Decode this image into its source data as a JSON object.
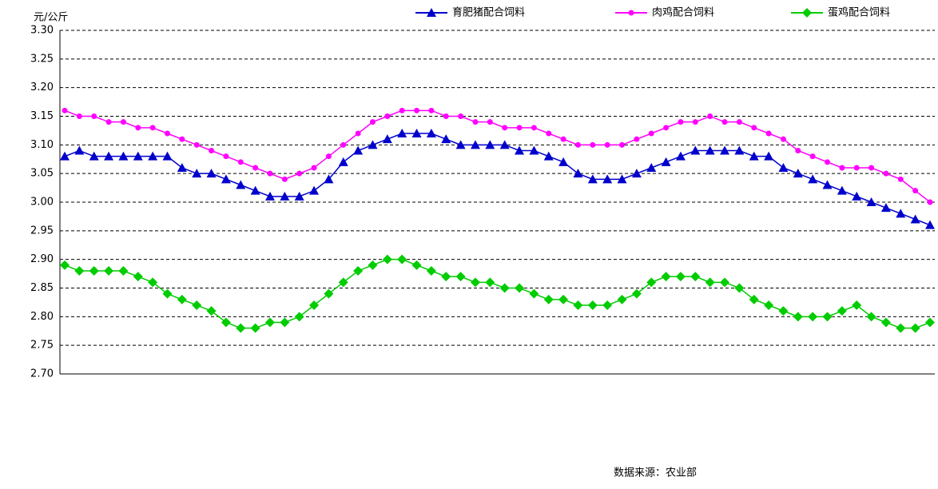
{
  "chart_data": {
    "type": "line",
    "title": null,
    "y_label": "元/公斤",
    "source": "数据来源：农业部",
    "categories": [
      null,
      null,
      null,
      null,
      null,
      null,
      null,
      null,
      null,
      null,
      null,
      null,
      null,
      null,
      null,
      null,
      null,
      null,
      null,
      null,
      null,
      null,
      null,
      null,
      null,
      null,
      null,
      null,
      null,
      null,
      null,
      null,
      null,
      null,
      null,
      null,
      null,
      null,
      null,
      null,
      null,
      null,
      null,
      null,
      null,
      null,
      null,
      null,
      null,
      null,
      null,
      null,
      null,
      null,
      null,
      null,
      null,
      null,
      null,
      null
    ],
    "ylim": [
      2.7,
      3.3
    ],
    "yticks": [
      {
        "value": 2.7,
        "label": "2.70"
      },
      2.75,
      {
        "value": 2.8,
        "label": "2.80"
      },
      2.85,
      {
        "value": 2.9,
        "label": "2.90"
      },
      2.95,
      {
        "value": 3.0,
        "label": "3.00"
      },
      3.05,
      {
        "value": 3.1,
        "label": "3.10"
      },
      3.15,
      {
        "value": 3.2,
        "label": "3.20"
      },
      3.25,
      {
        "value": 3.3,
        "label": "3.30"
      }
    ],
    "grid": true,
    "legend": "top-right",
    "series": [
      {
        "name": "育肥猪配合饲料",
        "color": "#0000cc",
        "marker": "triangle",
        "values": [
          3.08,
          3.09,
          3.08,
          3.08,
          3.08,
          3.08,
          3.08,
          3.08,
          3.06,
          3.05,
          3.05,
          3.04,
          3.03,
          3.02,
          3.01,
          3.01,
          3.01,
          3.02,
          3.04,
          3.07,
          3.09,
          3.1,
          3.11,
          3.12,
          3.12,
          3.12,
          3.11,
          3.1,
          3.1,
          3.1,
          3.1,
          3.09,
          3.09,
          3.08,
          3.07,
          3.05,
          3.04,
          3.04,
          3.04,
          3.05,
          3.06,
          3.07,
          3.08,
          3.09,
          3.09,
          3.09,
          3.09,
          3.08,
          3.08,
          3.06,
          3.05,
          3.04,
          3.03,
          3.02,
          3.01,
          3.0,
          2.99,
          2.98,
          2.97,
          2.96
        ]
      },
      {
        "name": "肉鸡配合饲料",
        "color": "#ff00ff",
        "marker": "circle",
        "values": [
          3.16,
          3.15,
          3.15,
          3.14,
          3.14,
          3.13,
          3.13,
          3.12,
          3.11,
          3.1,
          3.09,
          3.08,
          3.07,
          3.06,
          3.05,
          3.04,
          3.05,
          3.06,
          3.08,
          3.1,
          3.12,
          3.14,
          3.15,
          3.16,
          3.16,
          3.16,
          3.15,
          3.15,
          3.14,
          3.14,
          3.13,
          3.13,
          3.13,
          3.12,
          3.11,
          3.1,
          3.1,
          3.1,
          3.1,
          3.11,
          3.12,
          3.13,
          3.14,
          3.14,
          3.15,
          3.14,
          3.14,
          3.13,
          3.12,
          3.11,
          3.09,
          3.08,
          3.07,
          3.06,
          3.06,
          3.06,
          3.05,
          3.04,
          3.02,
          3.0
        ]
      },
      {
        "name": "蛋鸡配合饲料",
        "color": "#00cc00",
        "marker": "diamond",
        "values": [
          2.89,
          2.88,
          2.88,
          2.88,
          2.88,
          2.87,
          2.86,
          2.84,
          2.83,
          2.82,
          2.81,
          2.79,
          2.78,
          2.78,
          2.79,
          2.79,
          2.8,
          2.82,
          2.84,
          2.86,
          2.88,
          2.89,
          2.9,
          2.9,
          2.89,
          2.88,
          2.87,
          2.87,
          2.86,
          2.86,
          2.85,
          2.85,
          2.84,
          2.83,
          2.83,
          2.82,
          2.82,
          2.82,
          2.83,
          2.84,
          2.86,
          2.87,
          2.87,
          2.87,
          2.86,
          2.86,
          2.85,
          2.83,
          2.82,
          2.81,
          2.8,
          2.8,
          2.8,
          2.81,
          2.82,
          2.8,
          2.79,
          2.78,
          2.78,
          2.79
        ]
      }
    ]
  }
}
